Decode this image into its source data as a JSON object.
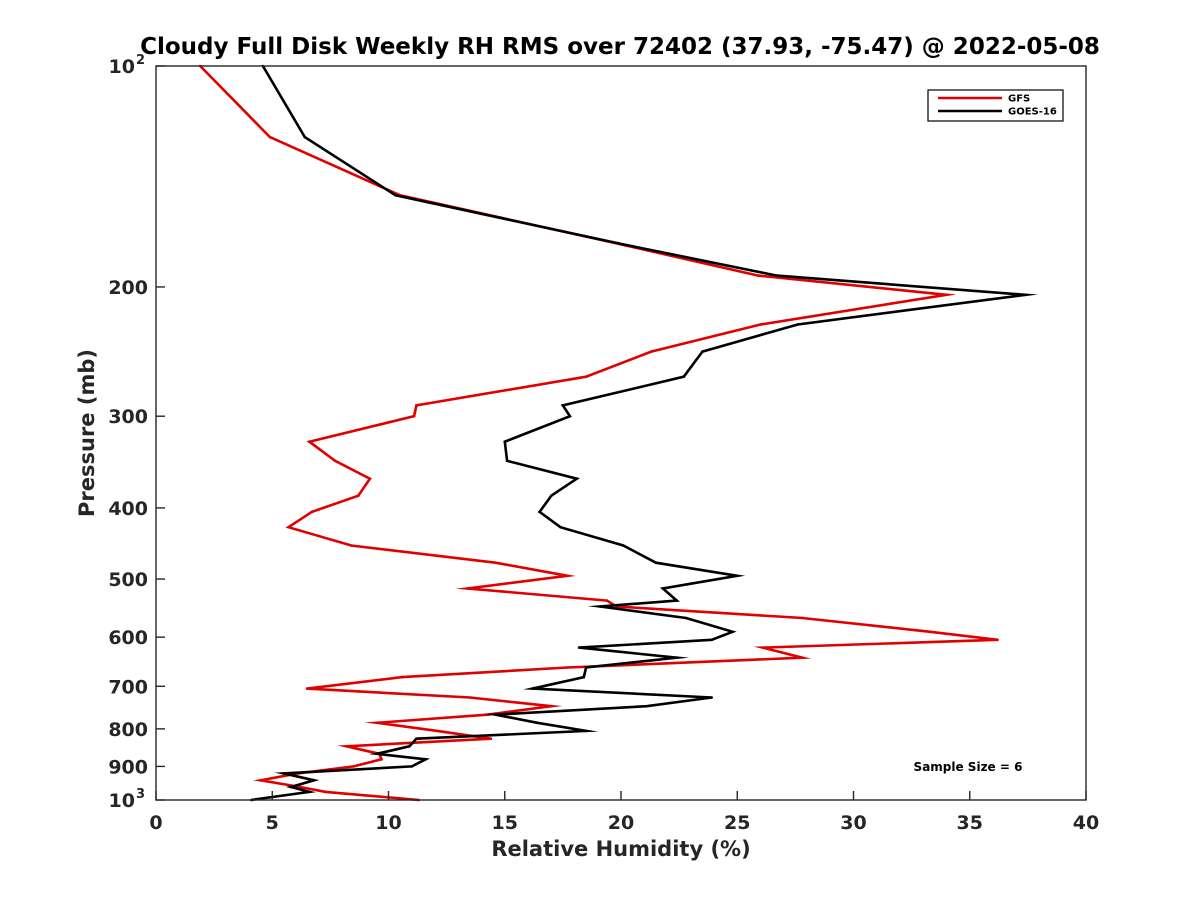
{
  "chart_data": {
    "type": "line",
    "title": "Cloudy Full Disk Weekly RH RMS over 72402 (37.93, -75.47) @ 2022-05-08",
    "xlabel": "Relative Humidity (%)",
    "ylabel": "Pressure (mb)",
    "xlim": [
      0,
      40
    ],
    "ylim": [
      100,
      1000
    ],
    "y_scale": "log",
    "y_reversed": true,
    "grid": false,
    "legend_position": "top-right",
    "x_ticks": [
      "0",
      "5",
      "10",
      "15",
      "20",
      "25",
      "30",
      "35",
      "40"
    ],
    "y_ticks": [
      {
        "value": 100,
        "base": "10",
        "exp": "2"
      },
      {
        "value": 200,
        "label": "200"
      },
      {
        "value": 300,
        "label": "300"
      },
      {
        "value": 400,
        "label": "400"
      },
      {
        "value": 500,
        "label": "500"
      },
      {
        "value": 600,
        "label": "600"
      },
      {
        "value": 700,
        "label": "700"
      },
      {
        "value": 800,
        "label": "800"
      },
      {
        "value": 900,
        "label": "900"
      },
      {
        "value": 1000,
        "base": "10",
        "exp": "3"
      }
    ],
    "annotation": "Sample Size = 6",
    "series": [
      {
        "name": "GFS",
        "color": "#e00000",
        "points": [
          [
            1.9,
            100
          ],
          [
            4.9,
            125
          ],
          [
            10.5,
            150
          ],
          [
            20,
            175
          ],
          [
            25.9,
            193
          ],
          [
            34,
            205
          ],
          [
            26,
            225
          ],
          [
            21.3,
            245
          ],
          [
            18.5,
            265
          ],
          [
            11.2,
            290
          ],
          [
            11.1,
            300
          ],
          [
            6.6,
            325
          ],
          [
            7.7,
            345
          ],
          [
            9.2,
            365
          ],
          [
            8.7,
            385
          ],
          [
            6.7,
            405
          ],
          [
            5.7,
            425
          ],
          [
            8.4,
            450
          ],
          [
            14.6,
            475
          ],
          [
            17.7,
            495
          ],
          [
            13.4,
            515
          ],
          [
            19.4,
            535
          ],
          [
            19.8,
            545
          ],
          [
            27.8,
            565
          ],
          [
            33.3,
            590
          ],
          [
            36.2,
            605
          ],
          [
            26.1,
            620
          ],
          [
            27.8,
            640
          ],
          [
            17.7,
            660
          ],
          [
            10.6,
            680
          ],
          [
            6.5,
            705
          ],
          [
            13.5,
            725
          ],
          [
            17,
            745
          ],
          [
            14.3,
            765
          ],
          [
            9.5,
            785
          ],
          [
            12.1,
            805
          ],
          [
            14.4,
            825
          ],
          [
            8.2,
            845
          ],
          [
            9.6,
            865
          ],
          [
            9.7,
            880
          ],
          [
            8.5,
            900
          ],
          [
            6.1,
            920
          ],
          [
            4.5,
            940
          ],
          [
            6.2,
            960
          ],
          [
            7.3,
            975
          ],
          [
            11.3,
            1000
          ]
        ]
      },
      {
        "name": "GOES-16",
        "color": "#000000",
        "points": [
          [
            4.6,
            100
          ],
          [
            6.4,
            125
          ],
          [
            10.3,
            150
          ],
          [
            20.1,
            175
          ],
          [
            26.7,
            193
          ],
          [
            37.4,
            205
          ],
          [
            27.6,
            225
          ],
          [
            23.5,
            245
          ],
          [
            22.7,
            265
          ],
          [
            17.5,
            290
          ],
          [
            17.8,
            300
          ],
          [
            15,
            325
          ],
          [
            15.1,
            345
          ],
          [
            18.1,
            365
          ],
          [
            17,
            385
          ],
          [
            16.5,
            405
          ],
          [
            17.4,
            425
          ],
          [
            20.1,
            450
          ],
          [
            21.5,
            475
          ],
          [
            25,
            495
          ],
          [
            21.8,
            515
          ],
          [
            22.4,
            535
          ],
          [
            19.1,
            545
          ],
          [
            22.8,
            565
          ],
          [
            24.8,
            590
          ],
          [
            23.9,
            605
          ],
          [
            18.2,
            620
          ],
          [
            22.4,
            640
          ],
          [
            18.5,
            660
          ],
          [
            18.4,
            680
          ],
          [
            16.2,
            705
          ],
          [
            23.9,
            725
          ],
          [
            21.1,
            745
          ],
          [
            14.6,
            765
          ],
          [
            16.4,
            785
          ],
          [
            18.5,
            805
          ],
          [
            11.2,
            825
          ],
          [
            10.9,
            845
          ],
          [
            9.5,
            865
          ],
          [
            11.6,
            880
          ],
          [
            11,
            900
          ],
          [
            5.5,
            920
          ],
          [
            6.8,
            940
          ],
          [
            5.8,
            960
          ],
          [
            6.6,
            975
          ],
          [
            4.1,
            1000
          ]
        ]
      }
    ]
  }
}
